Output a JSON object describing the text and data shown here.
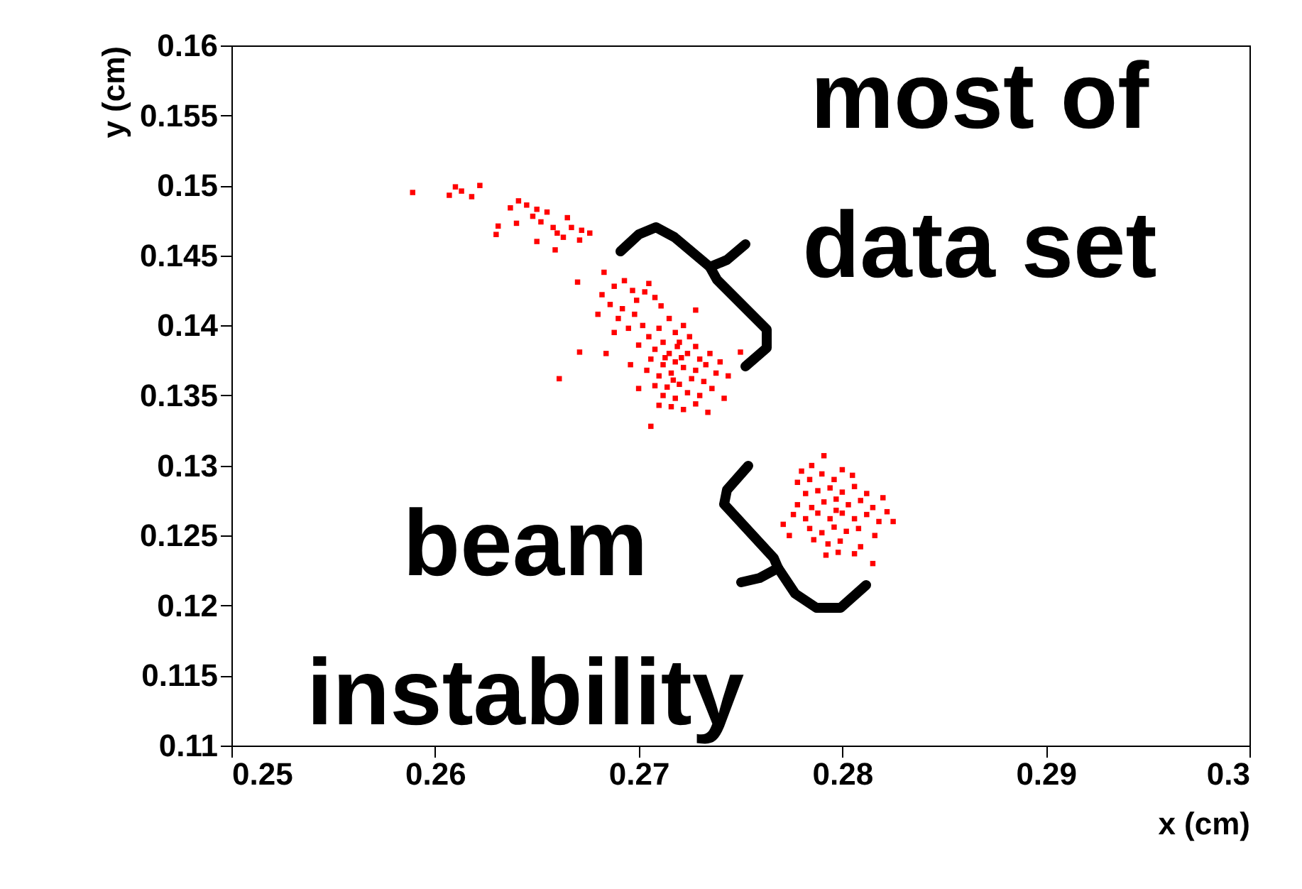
{
  "chart_data": {
    "type": "scatter",
    "xlabel": "x (cm)",
    "ylabel": "y (cm)",
    "xlim": [
      0.25,
      0.3
    ],
    "xticks": [
      0.25,
      0.26,
      0.27,
      0.28,
      0.29,
      0.3
    ],
    "ylim": [
      0.11,
      0.16
    ],
    "yticks": [
      0.11,
      0.115,
      0.12,
      0.125,
      0.13,
      0.135,
      0.14,
      0.145,
      0.15,
      0.155,
      0.16
    ],
    "grid": false,
    "marker": "square",
    "annotations": [
      "most of",
      "data set",
      "beam",
      "instability"
    ],
    "series": [
      {
        "color": "#ff0000",
        "x": [
          0.2589,
          0.261,
          0.2613,
          0.2622,
          0.2607,
          0.2618,
          0.2641,
          0.2637,
          0.2645,
          0.265,
          0.2648,
          0.2655,
          0.2652,
          0.2658,
          0.266,
          0.2665,
          0.2667,
          0.2672,
          0.2671,
          0.2676,
          0.2659,
          0.265,
          0.263,
          0.2631,
          0.264,
          0.2663,
          0.2682,
          0.2688,
          0.2693,
          0.2697,
          0.2686,
          0.2692,
          0.2699,
          0.2703,
          0.2705,
          0.268,
          0.269,
          0.2698,
          0.2708,
          0.2711,
          0.2702,
          0.2695,
          0.2688,
          0.2683,
          0.267,
          0.2705,
          0.271,
          0.2715,
          0.2718,
          0.2712,
          0.2708,
          0.27,
          0.272,
          0.2722,
          0.2725,
          0.2715,
          0.2718,
          0.2712,
          0.2706,
          0.2724,
          0.2728,
          0.273,
          0.2722,
          0.2716,
          0.271,
          0.2704,
          0.2728,
          0.2733,
          0.2735,
          0.2726,
          0.272,
          0.2714,
          0.2708,
          0.2732,
          0.2738,
          0.274,
          0.2724,
          0.2718,
          0.2712,
          0.273,
          0.2736,
          0.2716,
          0.2722,
          0.2728,
          0.271,
          0.2719,
          0.2713,
          0.2717,
          0.2721,
          0.2661,
          0.2671,
          0.2706,
          0.2728,
          0.275,
          0.2744,
          0.27,
          0.2696,
          0.2742,
          0.2734,
          0.2684,
          0.2771,
          0.2791,
          0.2785,
          0.278,
          0.2778,
          0.2784,
          0.279,
          0.2796,
          0.28,
          0.2805,
          0.2782,
          0.2788,
          0.2794,
          0.28,
          0.2806,
          0.2812,
          0.2778,
          0.2785,
          0.2791,
          0.2797,
          0.2803,
          0.2809,
          0.2815,
          0.282,
          0.2776,
          0.2782,
          0.2788,
          0.2794,
          0.28,
          0.2806,
          0.2812,
          0.2818,
          0.2825,
          0.2784,
          0.279,
          0.2796,
          0.2802,
          0.2808,
          0.2816,
          0.2786,
          0.2793,
          0.2799,
          0.2792,
          0.2798,
          0.2806,
          0.2815,
          0.2809,
          0.2822,
          0.2774,
          0.2797
        ],
        "values": [
          0.1495,
          0.1499,
          0.1496,
          0.15,
          0.1493,
          0.1492,
          0.1489,
          0.1484,
          0.1486,
          0.1483,
          0.1478,
          0.1481,
          0.1474,
          0.147,
          0.1466,
          0.1477,
          0.147,
          0.1468,
          0.1461,
          0.1466,
          0.1454,
          0.146,
          0.1465,
          0.1471,
          0.1473,
          0.1463,
          0.1422,
          0.1428,
          0.1432,
          0.1425,
          0.1415,
          0.1412,
          0.1418,
          0.1424,
          0.143,
          0.1408,
          0.1405,
          0.1408,
          0.142,
          0.1414,
          0.14,
          0.1398,
          0.1395,
          0.1438,
          0.1431,
          0.1392,
          0.1398,
          0.1405,
          0.1395,
          0.1388,
          0.1383,
          0.1386,
          0.1388,
          0.14,
          0.1392,
          0.138,
          0.1374,
          0.1372,
          0.1376,
          0.138,
          0.1385,
          0.1376,
          0.137,
          0.1366,
          0.1364,
          0.1368,
          0.1368,
          0.1372,
          0.138,
          0.1362,
          0.1358,
          0.1356,
          0.1357,
          0.136,
          0.1366,
          0.1374,
          0.1352,
          0.1348,
          0.135,
          0.135,
          0.1355,
          0.1342,
          0.134,
          0.1344,
          0.1343,
          0.1385,
          0.1377,
          0.1361,
          0.1377,
          0.1362,
          0.1381,
          0.1328,
          0.1411,
          0.1381,
          0.1364,
          0.1355,
          0.1372,
          0.1348,
          0.1338,
          0.138,
          0.1258,
          0.1307,
          0.13,
          0.1296,
          0.1288,
          0.129,
          0.1294,
          0.129,
          0.1297,
          0.1293,
          0.128,
          0.1282,
          0.1284,
          0.1281,
          0.1285,
          0.128,
          0.1272,
          0.127,
          0.1274,
          0.1276,
          0.1272,
          0.1275,
          0.127,
          0.1277,
          0.1265,
          0.1262,
          0.1266,
          0.1262,
          0.1266,
          0.1262,
          0.1265,
          0.126,
          0.126,
          0.1255,
          0.1252,
          0.1256,
          0.1253,
          0.1255,
          0.125,
          0.1247,
          0.1244,
          0.1246,
          0.1236,
          0.1238,
          0.1237,
          0.123,
          0.1242,
          0.1267,
          0.125,
          0.1268
        ]
      }
    ]
  }
}
